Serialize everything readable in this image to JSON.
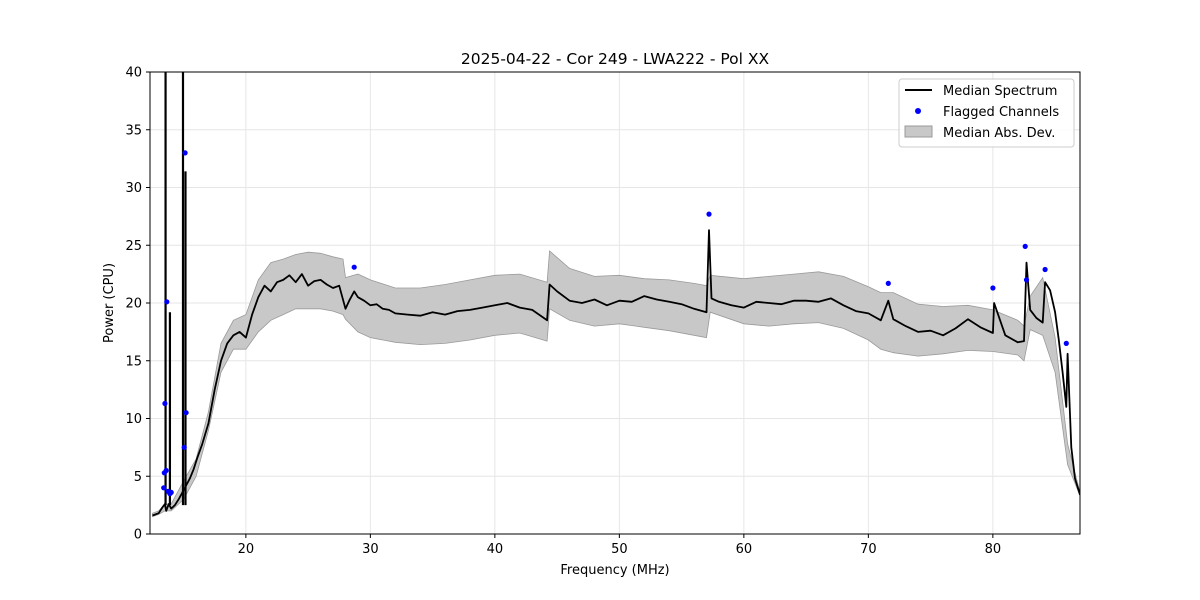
{
  "chart_data": {
    "type": "line",
    "title": "2025-04-22 - Cor 249 - LWA222 - Pol XX",
    "xlabel": "Frequency (MHz)",
    "ylabel": "Power (CPU)",
    "xlim": [
      12.3,
      87.0
    ],
    "ylim": [
      0,
      40
    ],
    "xticks": [
      20,
      30,
      40,
      50,
      60,
      70,
      80
    ],
    "yticks": [
      0,
      5,
      10,
      15,
      20,
      25,
      30,
      35,
      40
    ],
    "grid": true,
    "legend_position": "top-right",
    "legend": [
      "Median Spectrum",
      "Flagged Channels",
      "Median Abs. Dev."
    ],
    "colors": {
      "median": "#000000",
      "flagged": "#0000ff",
      "mad_fill": "#c8c8c8",
      "mad_edge": "#9a9a9a"
    },
    "series": [
      {
        "name": "Median Spectrum",
        "x": [
          12.5,
          13.0,
          13.3,
          13.5,
          13.6,
          13.8,
          14.0,
          14.3,
          14.6,
          14.9,
          15.2,
          15.5,
          15.8,
          16.1,
          16.5,
          17.0,
          17.5,
          18.0,
          18.5,
          19.0,
          19.5,
          20.0,
          20.5,
          21.0,
          21.5,
          22.0,
          22.5,
          23.0,
          23.5,
          24.0,
          24.5,
          25.0,
          25.5,
          26.0,
          26.5,
          27.0,
          27.5,
          28.0,
          28.3,
          28.7,
          29.0,
          29.5,
          30.0,
          30.5,
          31.0,
          31.5,
          32.0,
          33.0,
          34.0,
          35.0,
          36.0,
          37.0,
          38.0,
          39.0,
          40.0,
          41.0,
          42.0,
          43.0,
          44.2,
          44.4,
          45.0,
          46.0,
          47.0,
          48.0,
          49.0,
          50.0,
          51.0,
          52.0,
          53.0,
          54.0,
          55.0,
          56.0,
          57.0,
          57.2,
          57.4,
          58.0,
          59.0,
          60.0,
          61.0,
          62.0,
          63.0,
          64.0,
          65.0,
          66.0,
          67.0,
          68.0,
          69.0,
          70.0,
          71.0,
          71.6,
          72.0,
          73.0,
          74.0,
          75.0,
          76.0,
          77.0,
          78.0,
          79.0,
          80.0,
          80.1,
          81.0,
          82.0,
          82.5,
          82.7,
          83.0,
          83.5,
          84.0,
          84.2,
          84.6,
          85.0,
          85.3,
          85.6,
          85.9,
          86.0,
          86.3,
          86.6,
          87.0
        ],
        "values": [
          1.6,
          1.8,
          2.3,
          2.6,
          2.0,
          2.6,
          2.2,
          2.5,
          3.0,
          3.6,
          4.2,
          4.8,
          5.6,
          6.6,
          7.8,
          9.6,
          12.5,
          15.0,
          16.5,
          17.2,
          17.5,
          17.0,
          19.0,
          20.5,
          21.5,
          21.0,
          21.8,
          22.0,
          22.4,
          21.8,
          22.5,
          21.5,
          21.9,
          22.0,
          21.6,
          21.3,
          21.5,
          19.5,
          20.2,
          21.0,
          20.5,
          20.2,
          19.8,
          19.9,
          19.5,
          19.4,
          19.1,
          19.0,
          18.9,
          19.2,
          19.0,
          19.3,
          19.4,
          19.6,
          19.8,
          20.0,
          19.6,
          19.4,
          18.5,
          21.6,
          21.0,
          20.2,
          20.0,
          20.3,
          19.8,
          20.2,
          20.1,
          20.6,
          20.3,
          20.1,
          19.9,
          19.5,
          19.2,
          26.3,
          20.4,
          20.1,
          19.8,
          19.6,
          20.1,
          20.0,
          19.9,
          20.2,
          20.2,
          20.1,
          20.4,
          19.8,
          19.3,
          19.1,
          18.5,
          20.2,
          18.6,
          18.0,
          17.5,
          17.6,
          17.2,
          17.8,
          18.6,
          17.9,
          17.4,
          20.0,
          17.2,
          16.6,
          16.7,
          23.5,
          19.4,
          18.7,
          18.3,
          21.8,
          21.1,
          19.2,
          16.8,
          14.0,
          11.0,
          15.6,
          7.5,
          4.8,
          3.4
        ]
      },
      {
        "name": "Flagged Channels",
        "x": [
          13.4,
          13.45,
          13.5,
          13.6,
          13.65,
          13.75,
          13.9,
          14.0,
          15.05,
          15.12,
          15.2,
          28.7,
          57.2,
          71.6,
          80.0,
          82.6,
          82.7,
          84.2,
          85.9
        ],
        "values": [
          4.0,
          5.3,
          11.3,
          5.5,
          20.1,
          3.7,
          3.5,
          3.6,
          7.5,
          33.0,
          10.5,
          23.1,
          27.7,
          21.7,
          21.3,
          24.9,
          22.0,
          22.9,
          16.5
        ]
      },
      {
        "name": "Median Abs. Dev.",
        "x": [
          12.5,
          13.0,
          13.5,
          14.0,
          15.0,
          16.0,
          17.0,
          18.0,
          19.0,
          20.0,
          21.0,
          22.0,
          23.0,
          24.0,
          25.0,
          26.0,
          27.0,
          27.8,
          28.0,
          29.0,
          30.0,
          32.0,
          34.0,
          36.0,
          38.0,
          40.0,
          42.0,
          44.2,
          44.4,
          46.0,
          48.0,
          50.0,
          52.0,
          54.0,
          56.0,
          57.0,
          57.3,
          60.0,
          62.0,
          64.0,
          66.0,
          68.0,
          70.0,
          71.0,
          72.0,
          74.0,
          76.0,
          78.0,
          80.0,
          82.0,
          82.5,
          83.0,
          84.0,
          85.0,
          86.0,
          87.0
        ],
        "lower": [
          1.5,
          1.7,
          2.0,
          2.0,
          3.0,
          5.0,
          9.0,
          14.0,
          16.0,
          16.0,
          17.5,
          18.5,
          19.0,
          19.5,
          19.5,
          19.5,
          19.3,
          19.0,
          18.6,
          17.5,
          17.0,
          16.6,
          16.4,
          16.5,
          16.8,
          17.2,
          17.4,
          16.7,
          19.5,
          18.5,
          18.0,
          18.2,
          17.9,
          17.6,
          17.2,
          17.0,
          19.2,
          18.2,
          18.0,
          18.2,
          18.3,
          17.8,
          16.8,
          16.0,
          15.7,
          15.4,
          15.6,
          15.9,
          15.8,
          15.5,
          15.0,
          17.7,
          17.2,
          14.0,
          6.0,
          3.3
        ],
        "upper": [
          1.8,
          2.0,
          2.6,
          2.6,
          4.6,
          6.5,
          10.6,
          16.5,
          18.5,
          19.0,
          22.0,
          23.5,
          23.8,
          24.2,
          24.4,
          24.3,
          24.0,
          23.8,
          22.2,
          22.5,
          22.0,
          21.3,
          21.3,
          21.6,
          22.0,
          22.4,
          22.5,
          21.8,
          24.5,
          23.0,
          22.3,
          22.4,
          22.1,
          22.0,
          21.7,
          21.5,
          22.4,
          22.1,
          22.3,
          22.5,
          22.7,
          22.3,
          21.4,
          20.9,
          20.9,
          19.9,
          19.7,
          19.8,
          19.4,
          18.5,
          18.0,
          20.6,
          22.2,
          17.0,
          7.8,
          3.6
        ]
      }
    ]
  }
}
